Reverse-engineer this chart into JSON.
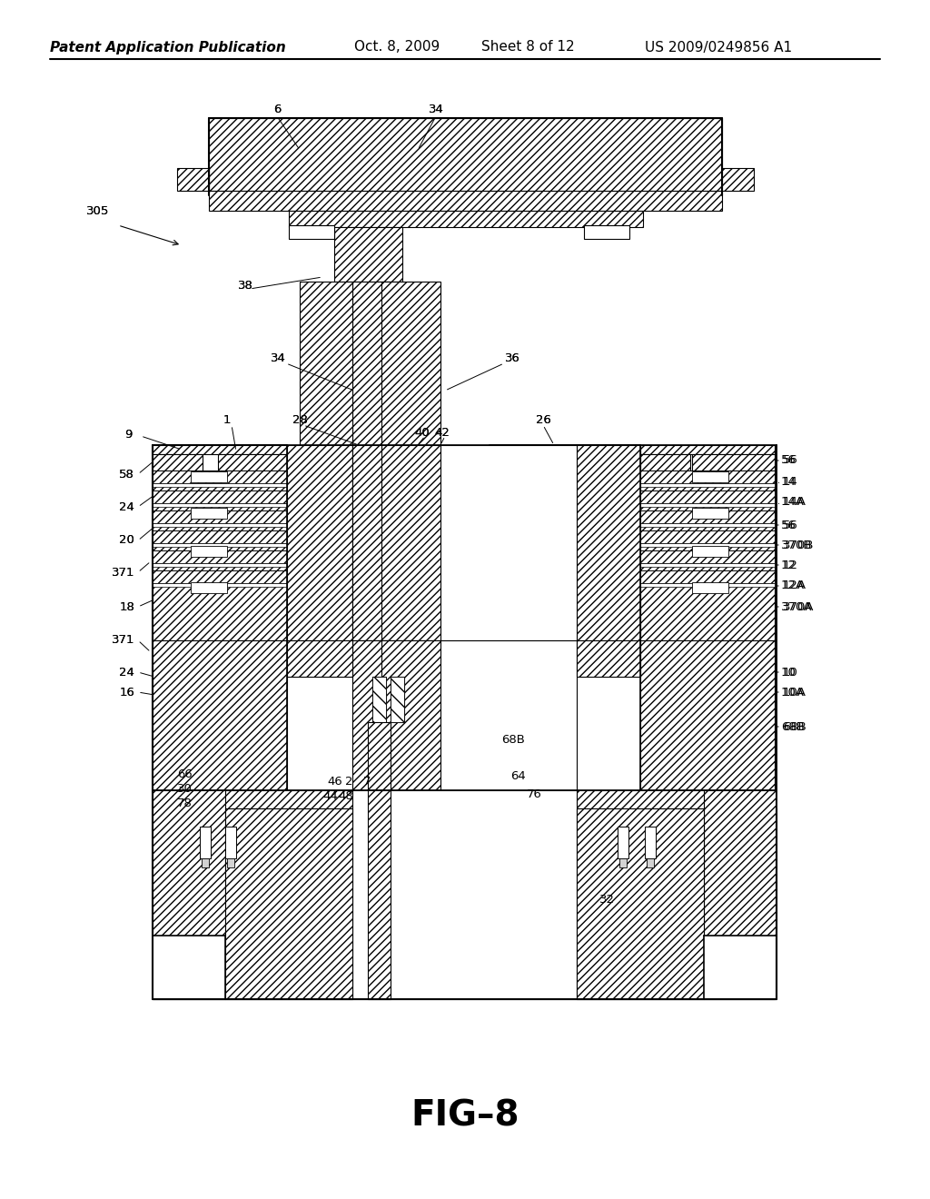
{
  "header_left": "Patent Application Publication",
  "header_date": "Oct. 8, 2009",
  "header_sheet": "Sheet 8 of 12",
  "header_patent": "US 2009/0249856 A1",
  "figure_label": "FIG–8",
  "background_color": "#ffffff",
  "page_width": 10.24,
  "page_height": 13.2,
  "dpi": 100
}
